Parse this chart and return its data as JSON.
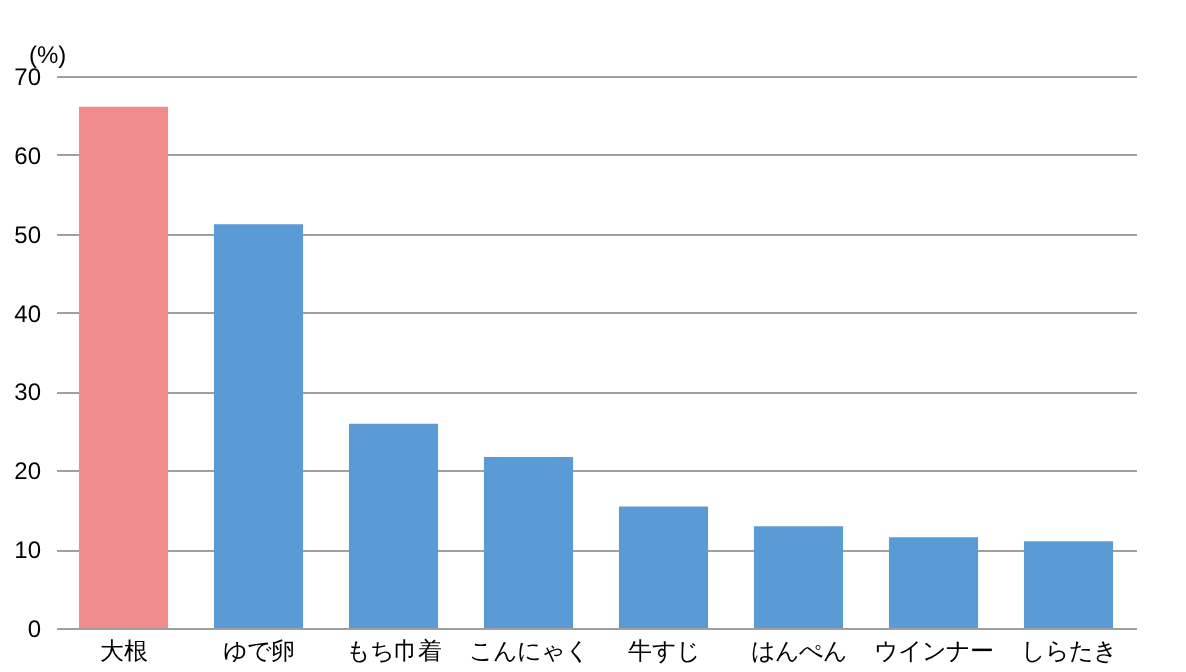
{
  "chart_data": {
    "type": "bar",
    "ylabel": "(%)",
    "categories": [
      "大根",
      "ゆで卵",
      "もち巾着",
      "こんにゃく",
      "牛すじ",
      "はんぺん",
      "ウインナー",
      "しらたき"
    ],
    "values": [
      66.1,
      51.2,
      25.9,
      21.7,
      15.4,
      12.9,
      11.5,
      11.0
    ],
    "colors": [
      "#f08c8c",
      "#5b9bd5",
      "#5b9bd5",
      "#5b9bd5",
      "#5b9bd5",
      "#5b9bd5",
      "#5b9bd5",
      "#5b9bd5"
    ],
    "ylim": [
      0,
      70
    ],
    "yticks": [
      0,
      10,
      20,
      30,
      40,
      50,
      60,
      70
    ],
    "grid": "y"
  }
}
